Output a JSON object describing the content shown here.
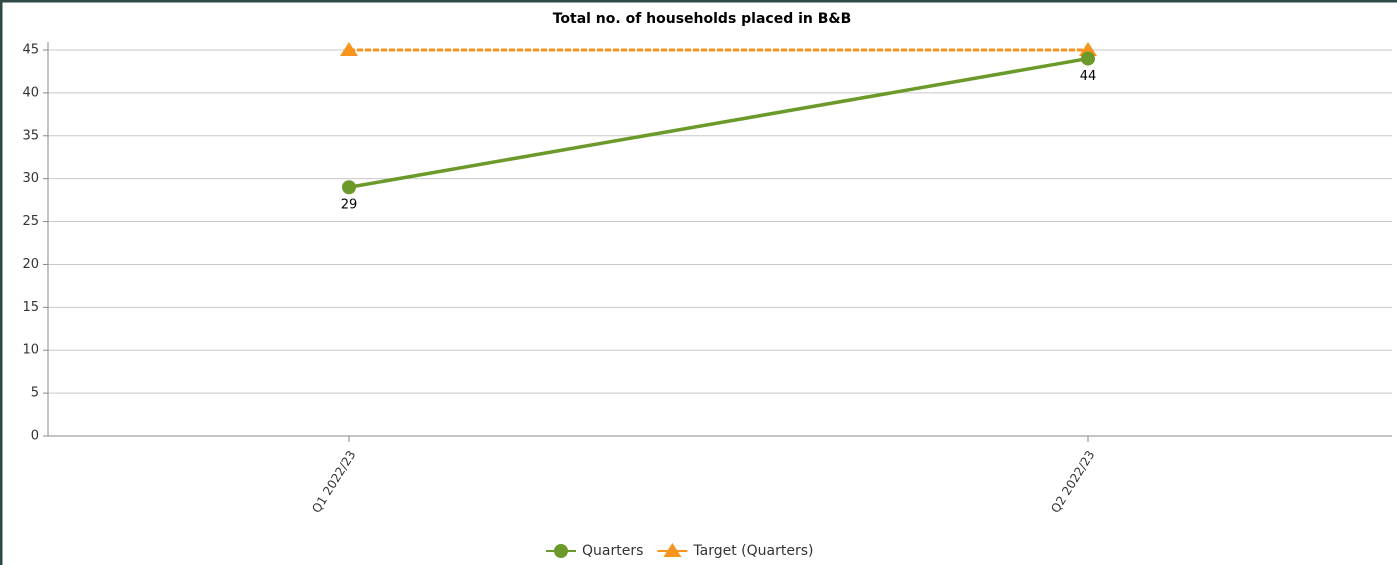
{
  "chart_data": {
    "type": "line",
    "title": "Total no. of households placed in B&B",
    "categories": [
      "Q1 2022/23",
      "Q2 2022/23"
    ],
    "series": [
      {
        "name": "Quarters",
        "color": "#6b9a2a",
        "marker": "circle",
        "dashed": false,
        "labels": true,
        "values": [
          29,
          44
        ]
      },
      {
        "name": "Target (Quarters)",
        "color": "#f7941d",
        "marker": "triangle",
        "dashed": true,
        "labels": false,
        "values": [
          45,
          45
        ]
      }
    ],
    "ylim": [
      0,
      45
    ],
    "yticks": [
      0,
      5,
      10,
      15,
      20,
      25,
      30,
      35,
      40,
      45
    ],
    "grid": true,
    "legend": "bottom"
  }
}
